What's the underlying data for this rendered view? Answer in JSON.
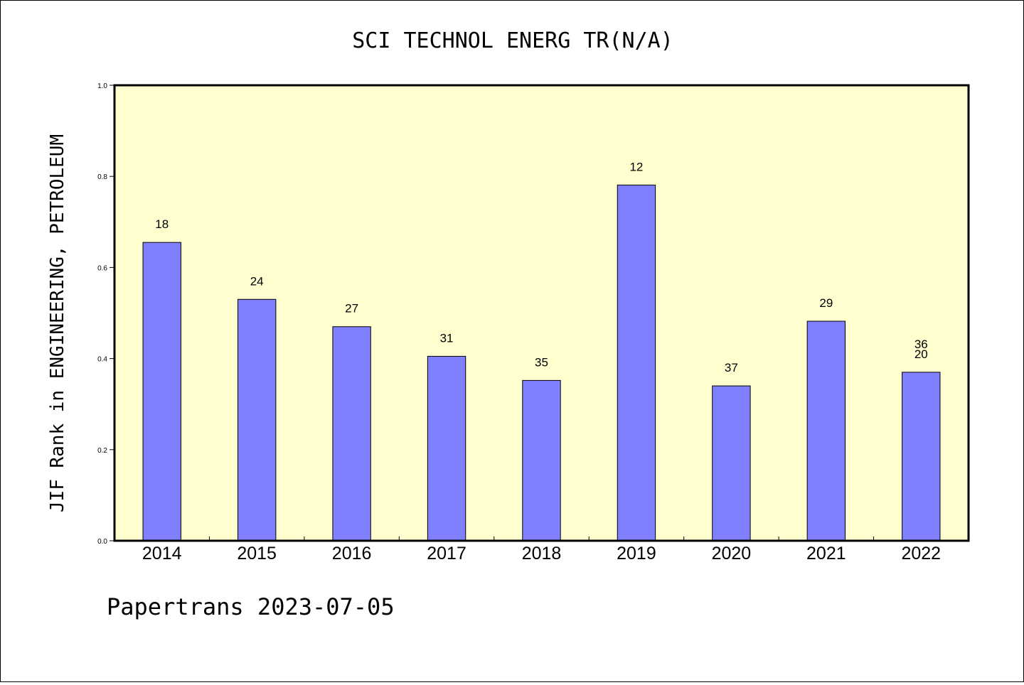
{
  "chart_data": {
    "type": "bar",
    "title": "SCI TECHNOL ENERG TR(N/A)",
    "xlabel": "",
    "ylabel": "JIF Rank in ENGINEERING, PETROLEUM",
    "categories": [
      "2014",
      "2015",
      "2016",
      "2017",
      "2018",
      "2019",
      "2020",
      "2021",
      "2022"
    ],
    "values": [
      0.655,
      0.53,
      0.47,
      0.405,
      0.352,
      0.781,
      0.34,
      0.482,
      0.37
    ],
    "bar_labels": [
      [
        "18"
      ],
      [
        "24"
      ],
      [
        "27"
      ],
      [
        "31"
      ],
      [
        "35"
      ],
      [
        "12"
      ],
      [
        "37"
      ],
      [
        "29"
      ],
      [
        "36",
        "20"
      ]
    ],
    "yticks": [
      "0.0",
      "0.2",
      "0.4",
      "0.6",
      "0.8",
      "1.0"
    ],
    "ylim": [
      0,
      1.0
    ],
    "grid": false,
    "legend": "none",
    "colors": {
      "plot_bg": "#ffffd0",
      "bar_fill": "#8080ff",
      "bar_stroke": "#000000"
    }
  },
  "footer": "Papertrans 2023-07-05"
}
